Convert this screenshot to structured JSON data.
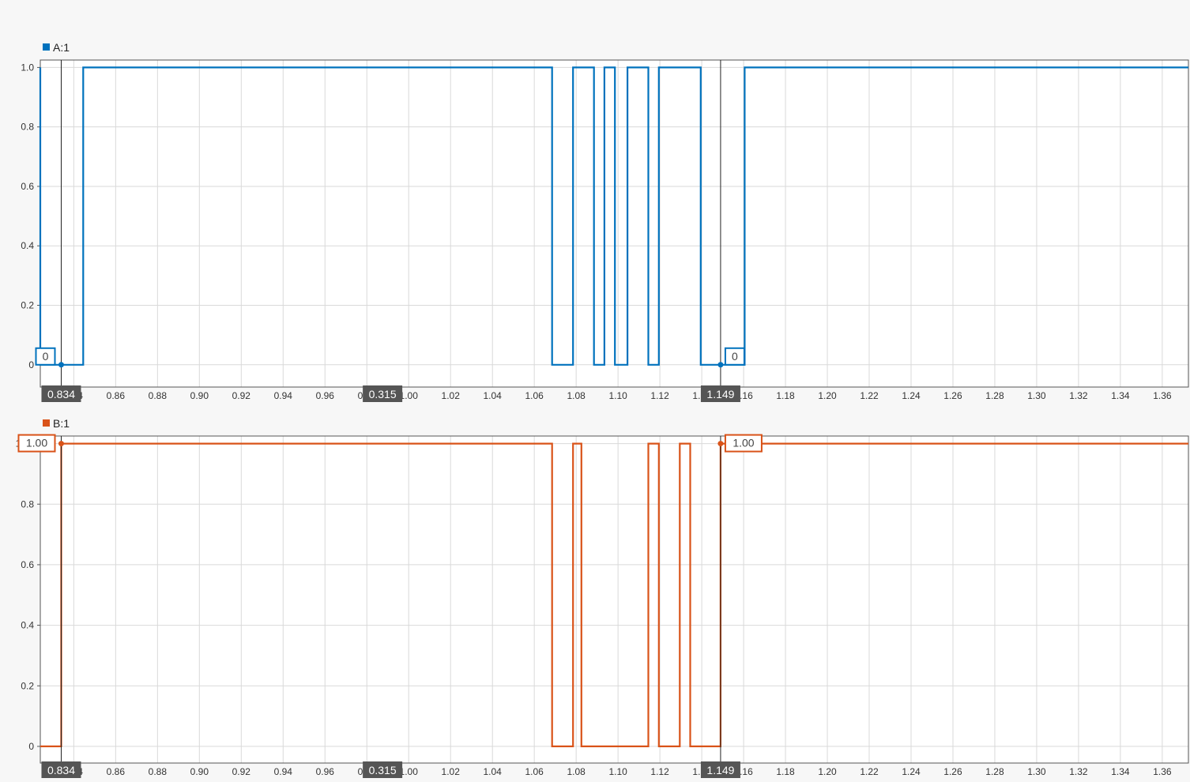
{
  "chart_data": [
    {
      "type": "line",
      "step": true,
      "legend": "A:1",
      "color": "#0072bd",
      "x_ticks": [
        "0.84",
        "0.86",
        "0.88",
        "0.90",
        "0.92",
        "0.94",
        "0.96",
        "0.98",
        "1.00",
        "1.02",
        "1.04",
        "1.06",
        "1.08",
        "1.10",
        "1.12",
        "1.14",
        "1.16",
        "1.18",
        "1.20",
        "1.22",
        "1.24",
        "1.26",
        "1.28",
        "1.30",
        "1.32",
        "1.34",
        "1.36"
      ],
      "y_ticks": [
        "0",
        "0.2",
        "0.4",
        "0.6",
        "0.8",
        "1.0"
      ],
      "xlim": [
        0.824,
        1.3725
      ],
      "ylim": [
        -0.075,
        1.025
      ],
      "grid": true,
      "x": [
        0.824,
        0.824,
        0.834,
        0.8445,
        0.8445,
        1.0685,
        1.0685,
        1.0785,
        1.0785,
        1.0885,
        1.0885,
        1.0935,
        1.0935,
        1.0985,
        1.0985,
        1.1045,
        1.1045,
        1.1145,
        1.1145,
        1.1195,
        1.1195,
        1.1395,
        1.1395,
        1.149,
        1.1605,
        1.1605,
        1.3725
      ],
      "y": [
        1,
        0,
        0,
        0,
        1,
        1,
        0,
        0,
        1,
        1,
        0,
        0,
        1,
        1,
        0,
        0,
        1,
        1,
        0,
        0,
        1,
        1,
        0,
        0,
        0,
        1,
        1
      ],
      "cursor_points": [
        {
          "x": 0.834,
          "y": 0
        },
        {
          "x": 1.149,
          "y": 0
        }
      ],
      "cursor_values": [
        "0",
        "0"
      ]
    },
    {
      "type": "line",
      "step": true,
      "legend": "B:1",
      "color": "#d95319",
      "x_ticks": [
        "0.84",
        "0.86",
        "0.88",
        "0.90",
        "0.92",
        "0.94",
        "0.96",
        "0.98",
        "1.00",
        "1.02",
        "1.04",
        "1.06",
        "1.08",
        "1.10",
        "1.12",
        "1.14",
        "1.16",
        "1.18",
        "1.20",
        "1.22",
        "1.24",
        "1.26",
        "1.28",
        "1.30",
        "1.32",
        "1.34",
        "1.36"
      ],
      "y_ticks": [
        "0",
        "0.2",
        "0.4",
        "0.6",
        "0.8",
        "1.00"
      ],
      "xlim": [
        0.824,
        1.3725
      ],
      "ylim": [
        -0.055,
        1.025
      ],
      "grid": true,
      "x": [
        0.824,
        0.834,
        0.834,
        1.0685,
        1.0685,
        1.0785,
        1.0785,
        1.0825,
        1.0825,
        1.1145,
        1.1145,
        1.1195,
        1.1195,
        1.1295,
        1.1295,
        1.1345,
        1.1345,
        1.149,
        1.149,
        1.3725
      ],
      "y": [
        0,
        0,
        1,
        1,
        0,
        0,
        1,
        1,
        0,
        0,
        1,
        1,
        0,
        0,
        1,
        1,
        0,
        0,
        1,
        1
      ],
      "cursor_points": [
        {
          "x": 0.834,
          "y": 1
        },
        {
          "x": 1.149,
          "y": 1
        }
      ],
      "cursor_values": [
        "1.00",
        "1.00"
      ]
    }
  ],
  "cursors": {
    "left_label": "0.834",
    "right_label": "1.149",
    "delta_label": "0.315",
    "left_x": 0.834,
    "right_x": 1.149,
    "delta_x": 0.9875,
    "color": "#555555"
  },
  "colors": {
    "grid": "#d9d9d9",
    "axis": "#555555",
    "background": "#ffffff"
  }
}
